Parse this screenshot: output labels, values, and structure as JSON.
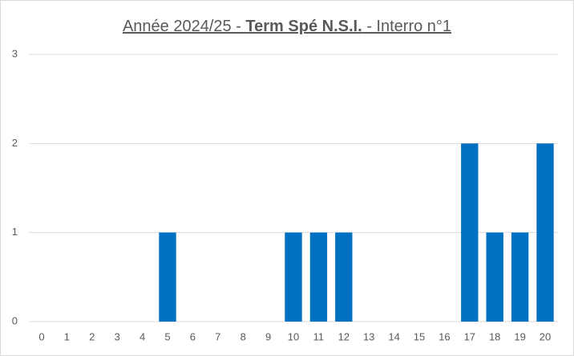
{
  "chart_data": {
    "type": "bar",
    "title": [
      "Année 2024/25 - ",
      "Term Spé N.S.I.",
      " - Interro n°1"
    ],
    "categories": [
      "0",
      "1",
      "2",
      "3",
      "4",
      "5",
      "6",
      "7",
      "8",
      "9",
      "10",
      "11",
      "12",
      "13",
      "14",
      "15",
      "16",
      "17",
      "18",
      "19",
      "20"
    ],
    "values": [
      0,
      0,
      0,
      0,
      0,
      1,
      0,
      0,
      0,
      0,
      1,
      1,
      1,
      0,
      0,
      0,
      0,
      2,
      1,
      1,
      2
    ],
    "color": "#0070c0",
    "ylim": [
      0,
      3
    ],
    "yticks": [
      0,
      1,
      2,
      3
    ],
    "grid": true
  }
}
